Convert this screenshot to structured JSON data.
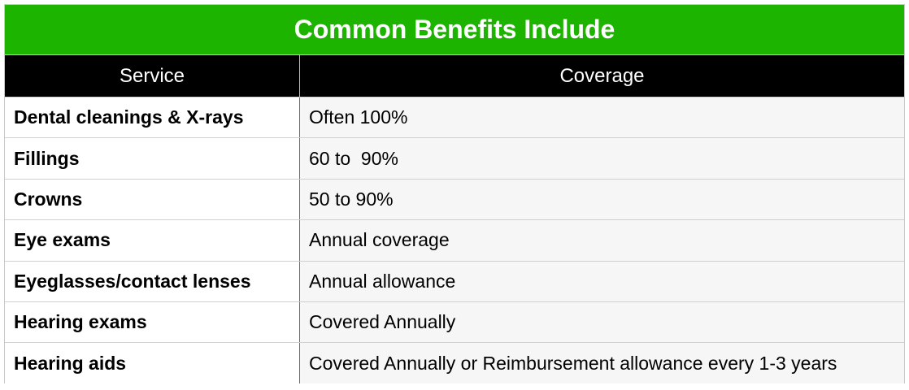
{
  "title": "Common Benefits Include",
  "columns": {
    "service": "Service",
    "coverage": "Coverage"
  },
  "rows": [
    {
      "service": "Dental cleanings & X-rays",
      "coverage": "Often 100%"
    },
    {
      "service": "Fillings",
      "coverage": "60 to  90%"
    },
    {
      "service": "Crowns",
      "coverage": "50 to 90%"
    },
    {
      "service": "Eye exams",
      "coverage": "Annual coverage"
    },
    {
      "service": "Eyeglasses/contact lenses",
      "coverage": "Annual allowance"
    },
    {
      "service": "Hearing exams",
      "coverage": "Covered Annually"
    },
    {
      "service": "Hearing aids",
      "coverage": "Covered Annually or Reimbursement allowance every 1-3 years"
    }
  ],
  "colors": {
    "title_bg": "#1db400",
    "header_bg": "#000000",
    "coverage_bg": "#f6f6f6"
  }
}
